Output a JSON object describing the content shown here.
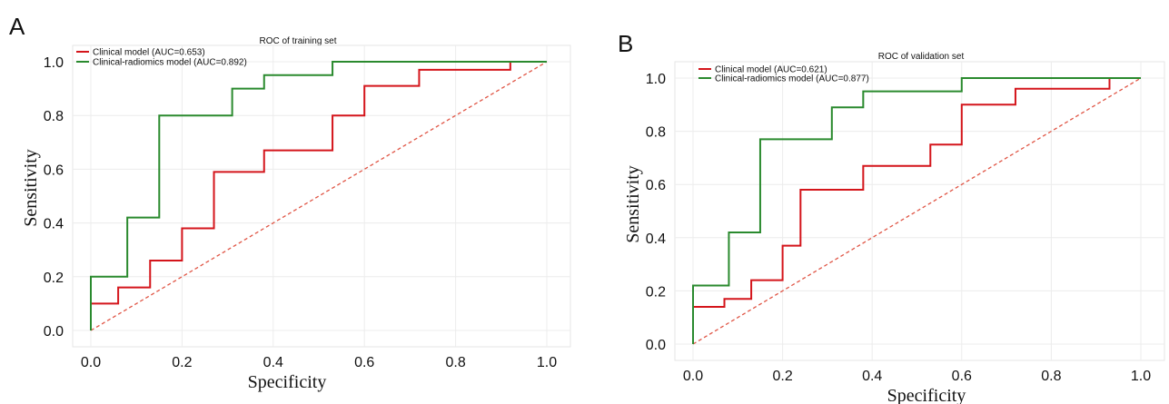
{
  "chart_data": [
    {
      "panel_label": "A",
      "type": "line",
      "title": "ROC of training set",
      "xlabel": "Specificity",
      "ylabel": "Sensitivity",
      "xlim": [
        0.0,
        1.0
      ],
      "ylim": [
        0.0,
        1.0
      ],
      "xticks": [
        "0.0",
        "0.2",
        "0.4",
        "0.6",
        "0.8",
        "1.0"
      ],
      "yticks": [
        "0.0",
        "0.2",
        "0.4",
        "0.6",
        "0.8",
        "1.0"
      ],
      "grid": true,
      "legend_position": "top-left",
      "diagonal": {
        "color": "#e05545",
        "x": [
          0,
          1
        ],
        "y": [
          0,
          1
        ]
      },
      "series": [
        {
          "name": "Clinical model (AUC=0.653)",
          "color": "#d4151b",
          "x": [
            0.0,
            0.0,
            0.06,
            0.06,
            0.13,
            0.13,
            0.2,
            0.2,
            0.27,
            0.27,
            0.38,
            0.38,
            0.53,
            0.53,
            0.6,
            0.6,
            0.72,
            0.72,
            0.92,
            0.92,
            1.0
          ],
          "y": [
            0.0,
            0.1,
            0.1,
            0.16,
            0.16,
            0.26,
            0.26,
            0.38,
            0.38,
            0.59,
            0.59,
            0.67,
            0.67,
            0.8,
            0.8,
            0.91,
            0.91,
            0.97,
            0.97,
            1.0,
            1.0
          ]
        },
        {
          "name": "Clinical-radiomics model  (AUC=0.892)",
          "color": "#2a8a2e",
          "x": [
            0.0,
            0.0,
            0.08,
            0.08,
            0.15,
            0.15,
            0.31,
            0.31,
            0.38,
            0.38,
            0.53,
            0.53,
            1.0
          ],
          "y": [
            0.0,
            0.2,
            0.2,
            0.42,
            0.42,
            0.8,
            0.8,
            0.9,
            0.9,
            0.95,
            0.95,
            1.0,
            1.0
          ]
        }
      ]
    },
    {
      "panel_label": "B",
      "type": "line",
      "title": "ROC of validation set",
      "xlabel": "Specificity",
      "ylabel": "Sensitivity",
      "xlim": [
        0.0,
        1.0
      ],
      "ylim": [
        0.0,
        1.0
      ],
      "xticks": [
        "0.0",
        "0.2",
        "0.4",
        "0.6",
        "0.8",
        "1.0"
      ],
      "yticks": [
        "0.0",
        "0.2",
        "0.4",
        "0.6",
        "0.8",
        "1.0"
      ],
      "grid": true,
      "legend_position": "top-left",
      "diagonal": {
        "color": "#e05545",
        "x": [
          0,
          1
        ],
        "y": [
          0,
          1
        ]
      },
      "series": [
        {
          "name": "Clinical model (AUC=0.621)",
          "color": "#d4151b",
          "x": [
            0.0,
            0.0,
            0.07,
            0.07,
            0.13,
            0.13,
            0.2,
            0.2,
            0.24,
            0.24,
            0.38,
            0.38,
            0.53,
            0.53,
            0.6,
            0.6,
            0.72,
            0.72,
            0.93,
            0.93,
            1.0
          ],
          "y": [
            0.0,
            0.14,
            0.14,
            0.17,
            0.17,
            0.24,
            0.24,
            0.37,
            0.37,
            0.58,
            0.58,
            0.67,
            0.67,
            0.75,
            0.75,
            0.9,
            0.9,
            0.96,
            0.96,
            1.0,
            1.0
          ]
        },
        {
          "name": "Clinical-radiomics model  (AUC=0.877)",
          "color": "#2a8a2e",
          "x": [
            0.0,
            0.0,
            0.08,
            0.08,
            0.15,
            0.15,
            0.31,
            0.31,
            0.38,
            0.38,
            0.6,
            0.6,
            1.0
          ],
          "y": [
            0.0,
            0.22,
            0.22,
            0.42,
            0.42,
            0.77,
            0.77,
            0.89,
            0.89,
            0.95,
            0.95,
            1.0,
            1.0
          ]
        }
      ]
    }
  ]
}
